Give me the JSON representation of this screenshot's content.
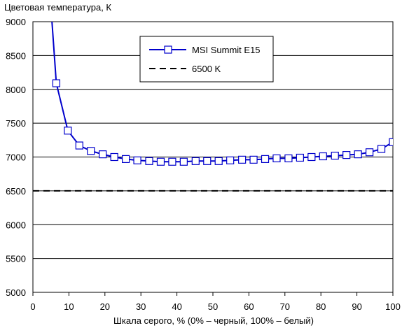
{
  "chart_data": {
    "type": "line",
    "title": "",
    "ylabel": "Цветовая температура, К",
    "xlabel": "Шкала серого, % (0% – черный, 100% – белый)",
    "xlim": [
      0,
      100
    ],
    "ylim": [
      5000,
      9000
    ],
    "xticks": [
      0,
      10,
      20,
      30,
      40,
      50,
      60,
      70,
      80,
      90,
      100
    ],
    "yticks": [
      5000,
      5500,
      6000,
      6500,
      7000,
      7500,
      8000,
      8500,
      9000
    ],
    "grid": true,
    "legend_position": "top-center",
    "series": [
      {
        "name": "MSI Summit E15",
        "color": "#0000cc",
        "marker": "square",
        "x": [
          6.5,
          9.7,
          12.9,
          16.1,
          19.4,
          22.6,
          25.8,
          29.0,
          32.3,
          35.5,
          38.7,
          41.9,
          45.2,
          48.4,
          51.6,
          54.8,
          58.1,
          61.3,
          64.5,
          67.7,
          71.0,
          74.2,
          77.4,
          80.6,
          83.9,
          87.1,
          90.3,
          93.5,
          96.8,
          100.0
        ],
        "y": [
          8090,
          7390,
          7170,
          7090,
          7040,
          7000,
          6970,
          6950,
          6940,
          6930,
          6930,
          6930,
          6940,
          6940,
          6940,
          6950,
          6960,
          6960,
          6970,
          6980,
          6980,
          6990,
          7000,
          7010,
          7020,
          7030,
          7040,
          7070,
          7120,
          7220
        ],
        "line_start": [
          5.3,
          9000
        ]
      },
      {
        "name": "6500 K",
        "color": "#000000",
        "dashed": true,
        "x": [
          0,
          100
        ],
        "y": [
          6500,
          6500
        ]
      }
    ]
  }
}
